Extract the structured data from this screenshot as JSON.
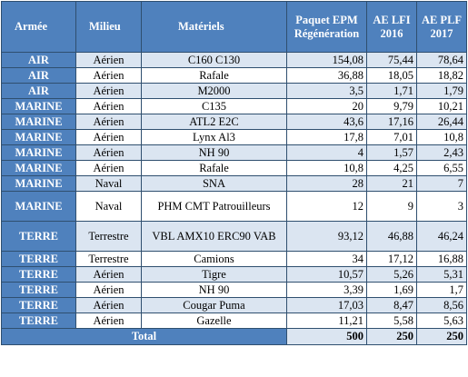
{
  "header": {
    "armee": "Armée",
    "milieu": "Milieu",
    "materiels": "Matériels",
    "paquet": "Paquet EPM Régénération",
    "ae_lfi": "AE LFI 2016",
    "ae_plf": "AE PLF 2017"
  },
  "rows": [
    {
      "armee": "AIR",
      "milieu": "Aérien",
      "materiel": "C160 C130",
      "paquet": "154,08",
      "lfi": "75,44",
      "plf": "78,64"
    },
    {
      "armee": "AIR",
      "milieu": "Aérien",
      "materiel": "Rafale",
      "paquet": "36,88",
      "lfi": "18,05",
      "plf": "18,82"
    },
    {
      "armee": "AIR",
      "milieu": "Aérien",
      "materiel": "M2000",
      "paquet": "3,5",
      "lfi": "1,71",
      "plf": "1,79"
    },
    {
      "armee": "MARINE",
      "milieu": "Aérien",
      "materiel": "C135",
      "paquet": "20",
      "lfi": "9,79",
      "plf": "10,21"
    },
    {
      "armee": "MARINE",
      "milieu": "Aérien",
      "materiel": "ATL2 E2C",
      "paquet": "43,6",
      "lfi": "17,16",
      "plf": "26,44"
    },
    {
      "armee": "MARINE",
      "milieu": "Aérien",
      "materiel": "Lynx  Al3",
      "paquet": "17,8",
      "lfi": "7,01",
      "plf": "10,8"
    },
    {
      "armee": "MARINE",
      "milieu": "Aérien",
      "materiel": "NH 90",
      "paquet": "4",
      "lfi": "1,57",
      "plf": "2,43"
    },
    {
      "armee": "MARINE",
      "milieu": "Aérien",
      "materiel": "Rafale",
      "paquet": "10,8",
      "lfi": "4,25",
      "plf": "6,55"
    },
    {
      "armee": "MARINE",
      "milieu": "Naval",
      "materiel": "SNA",
      "paquet": "28",
      "lfi": "21",
      "plf": "7"
    },
    {
      "armee": "MARINE",
      "milieu": "Naval",
      "materiel": "PHM CMT Patrouilleurs",
      "paquet": "12",
      "lfi": "9",
      "plf": "3"
    },
    {
      "armee": "TERRE",
      "milieu": "Terrestre",
      "materiel": "VBL AMX10 ERC90 VAB",
      "paquet": "93,12",
      "lfi": "46,88",
      "plf": "46,24"
    },
    {
      "armee": "TERRE",
      "milieu": "Terrestre",
      "materiel": "Camions",
      "paquet": "34",
      "lfi": "17,12",
      "plf": "16,88"
    },
    {
      "armee": "TERRE",
      "milieu": "Aérien",
      "materiel": "Tigre",
      "paquet": "10,57",
      "lfi": "5,26",
      "plf": "5,31"
    },
    {
      "armee": "TERRE",
      "milieu": "Aérien",
      "materiel": "NH 90",
      "paquet": "3,39",
      "lfi": "1,69",
      "plf": "1,7"
    },
    {
      "armee": "TERRE",
      "milieu": "Aérien",
      "materiel": "Cougar Puma",
      "paquet": "17,03",
      "lfi": "8,47",
      "plf": "8,56"
    },
    {
      "armee": "TERRE",
      "milieu": "Aérien",
      "materiel": "Gazelle",
      "paquet": "11,21",
      "lfi": "5,58",
      "plf": "5,63"
    }
  ],
  "total": {
    "label": "Total",
    "paquet": "500",
    "lfi": "250",
    "plf": "250"
  }
}
